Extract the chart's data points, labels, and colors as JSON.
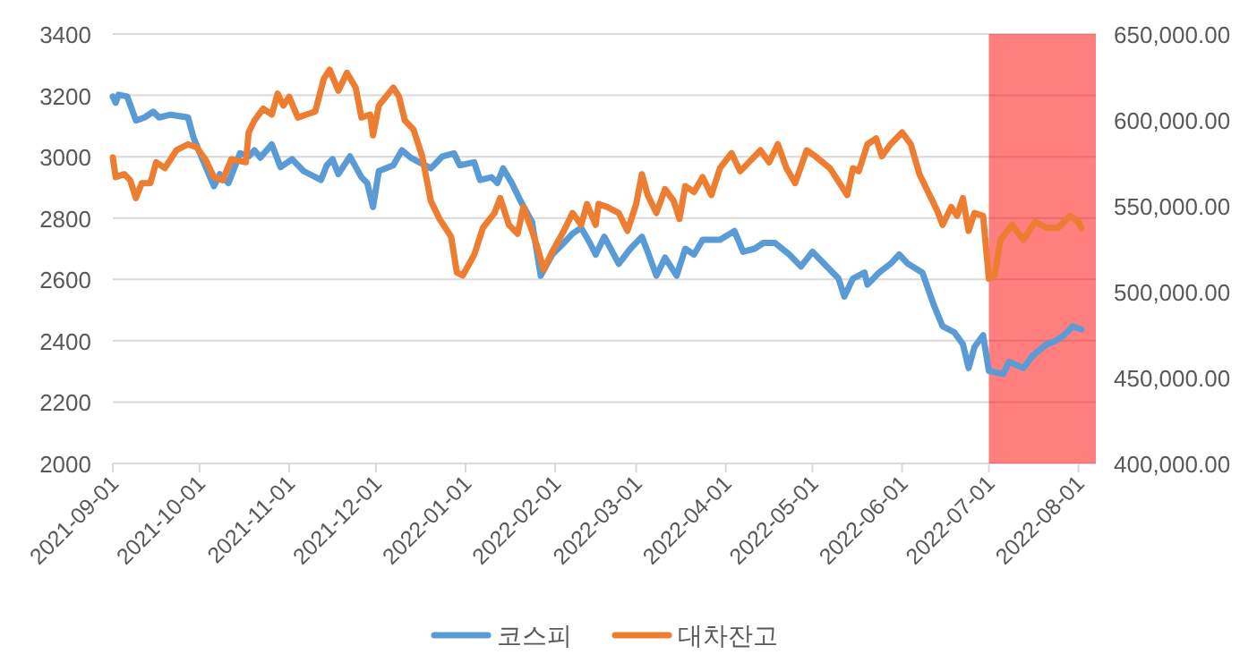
{
  "chart_data": {
    "type": "line",
    "legend": "bottom",
    "grid": "y",
    "xlim": [
      "2021-09-01",
      "2022-08-07"
    ],
    "xticks": [
      "2021-09-01",
      "2021-10-01",
      "2021-11-01",
      "2021-12-01",
      "2022-01-01",
      "2022-02-01",
      "2022-03-01",
      "2022-04-01",
      "2022-05-01",
      "2022-06-01",
      "2022-07-01",
      "2022-08-01"
    ],
    "ylim": [
      2000,
      3400
    ],
    "yticks": [
      2000,
      2200,
      2400,
      2600,
      2800,
      3000,
      3200,
      3400
    ],
    "y2lim": [
      400000,
      650000
    ],
    "y2ticks": [
      {
        "value": 400000,
        "label": "400,000.00"
      },
      {
        "value": 450000,
        "label": "450,000.00"
      },
      {
        "value": 500000,
        "label": "500,000.00"
      },
      {
        "value": 550000,
        "label": "550,000.00"
      },
      {
        "value": 600000,
        "label": "600,000.00"
      },
      {
        "value": 650000,
        "label": "650,000.00"
      }
    ],
    "bands": [
      {
        "axis": "x",
        "from": "2022-07-01",
        "to": "2022-08-07",
        "color": "#ff0000"
      }
    ],
    "series": [
      {
        "name": "코스피",
        "color": "#5b9bd5",
        "x": [
          "2021-09-01",
          "2021-09-02",
          "2021-09-03",
          "2021-09-06",
          "2021-09-09",
          "2021-09-12",
          "2021-09-15",
          "2021-09-17",
          "2021-09-21",
          "2021-09-27",
          "2021-09-29",
          "2021-10-02",
          "2021-10-06",
          "2021-10-08",
          "2021-10-11",
          "2021-10-15",
          "2021-10-18",
          "2021-10-20",
          "2021-10-22",
          "2021-10-26",
          "2021-10-29",
          "2021-11-02",
          "2021-11-06",
          "2021-11-12",
          "2021-11-14",
          "2021-11-16",
          "2021-11-18",
          "2021-11-22",
          "2021-11-26",
          "2021-11-28",
          "2021-11-30",
          "2021-12-02",
          "2021-12-07",
          "2021-12-10",
          "2021-12-13",
          "2021-12-16",
          "2021-12-20",
          "2021-12-24",
          "2021-12-28",
          "2021-12-30",
          "2022-01-04",
          "2022-01-06",
          "2022-01-10",
          "2022-01-12",
          "2022-01-14",
          "2022-01-17",
          "2022-01-20",
          "2022-01-24",
          "2022-01-27",
          "2022-01-31",
          "2022-02-04",
          "2022-02-07",
          "2022-02-10",
          "2022-02-13",
          "2022-02-15",
          "2022-02-18",
          "2022-02-23",
          "2022-02-27",
          "2022-03-03",
          "2022-03-05",
          "2022-03-08",
          "2022-03-11",
          "2022-03-15",
          "2022-03-18",
          "2022-03-21",
          "2022-03-24",
          "2022-03-30",
          "2022-04-04",
          "2022-04-07",
          "2022-04-11",
          "2022-04-14",
          "2022-04-18",
          "2022-04-23",
          "2022-04-27",
          "2022-05-01",
          "2022-05-05",
          "2022-05-10",
          "2022-05-12",
          "2022-05-15",
          "2022-05-19",
          "2022-05-20",
          "2022-05-24",
          "2022-05-28",
          "2022-05-31",
          "2022-06-03",
          "2022-06-08",
          "2022-06-12",
          "2022-06-15",
          "2022-06-19",
          "2022-06-22",
          "2022-06-24",
          "2022-06-26",
          "2022-06-29",
          "2022-07-01",
          "2022-07-06",
          "2022-07-08",
          "2022-07-13",
          "2022-07-16",
          "2022-07-21",
          "2022-07-24",
          "2022-07-27",
          "2022-07-30",
          "2022-08-02"
        ],
        "values": [
          3196,
          3176,
          3202,
          3196,
          3118,
          3128,
          3147,
          3128,
          3137,
          3128,
          3060,
          2992,
          2904,
          2943,
          2914,
          3011,
          3001,
          3021,
          2997,
          3040,
          2966,
          2992,
          2953,
          2924,
          2972,
          2992,
          2943,
          3001,
          2933,
          2914,
          2836,
          2953,
          2972,
          3021,
          2997,
          2982,
          2962,
          3001,
          3011,
          2972,
          2982,
          2924,
          2933,
          2914,
          2962,
          2914,
          2856,
          2787,
          2612,
          2681,
          2719,
          2749,
          2768,
          2719,
          2681,
          2739,
          2651,
          2700,
          2739,
          2690,
          2612,
          2671,
          2612,
          2700,
          2681,
          2729,
          2729,
          2758,
          2690,
          2700,
          2719,
          2719,
          2681,
          2642,
          2690,
          2651,
          2603,
          2544,
          2603,
          2622,
          2583,
          2622,
          2651,
          2681,
          2651,
          2622,
          2515,
          2447,
          2428,
          2389,
          2311,
          2379,
          2418,
          2301,
          2292,
          2331,
          2311,
          2350,
          2389,
          2399,
          2418,
          2447,
          2437
        ]
      },
      {
        "name": "대차잔고",
        "color": "#ed7d31",
        "axis": "y2",
        "x": [
          "2021-09-01",
          "2021-09-02",
          "2021-09-05",
          "2021-09-07",
          "2021-09-09",
          "2021-09-11",
          "2021-09-14",
          "2021-09-16",
          "2021-09-19",
          "2021-09-23",
          "2021-09-27",
          "2021-09-30",
          "2021-10-03",
          "2021-10-06",
          "2021-10-09",
          "2021-10-12",
          "2021-10-17",
          "2021-10-18",
          "2021-10-20",
          "2021-10-23",
          "2021-10-26",
          "2021-10-28",
          "2021-10-30",
          "2021-11-01",
          "2021-11-04",
          "2021-11-07",
          "2021-11-10",
          "2021-11-13",
          "2021-11-15",
          "2021-11-18",
          "2021-11-21",
          "2021-11-24",
          "2021-11-26",
          "2021-11-29",
          "2021-11-30",
          "2021-12-02",
          "2021-12-07",
          "2021-12-09",
          "2021-12-11",
          "2021-12-14",
          "2021-12-17",
          "2021-12-20",
          "2021-12-23",
          "2021-12-27",
          "2021-12-29",
          "2021-12-31",
          "2022-01-04",
          "2022-01-07",
          "2022-01-11",
          "2022-01-13",
          "2022-01-16",
          "2022-01-19",
          "2022-01-21",
          "2022-01-24",
          "2022-01-26",
          "2022-01-28",
          "2022-01-31",
          "2022-02-04",
          "2022-02-07",
          "2022-02-10",
          "2022-02-12",
          "2022-02-15",
          "2022-02-16",
          "2022-02-19",
          "2022-02-23",
          "2022-02-26",
          "2022-03-01",
          "2022-03-03",
          "2022-03-05",
          "2022-03-08",
          "2022-03-11",
          "2022-03-14",
          "2022-03-16",
          "2022-03-18",
          "2022-03-21",
          "2022-03-24",
          "2022-03-27",
          "2022-03-30",
          "2022-04-03",
          "2022-04-06",
          "2022-04-09",
          "2022-04-13",
          "2022-04-16",
          "2022-04-19",
          "2022-04-22",
          "2022-04-25",
          "2022-04-29",
          "2022-05-02",
          "2022-05-07",
          "2022-05-11",
          "2022-05-13",
          "2022-05-15",
          "2022-05-17",
          "2022-05-20",
          "2022-05-23",
          "2022-05-25",
          "2022-05-28",
          "2022-06-01",
          "2022-06-04",
          "2022-06-07",
          "2022-06-13",
          "2022-06-15",
          "2022-06-18",
          "2022-06-20",
          "2022-06-22",
          "2022-06-24",
          "2022-06-26",
          "2022-06-29",
          "2022-07-01",
          "2022-07-03",
          "2022-07-05",
          "2022-07-09",
          "2022-07-13",
          "2022-07-17",
          "2022-07-21",
          "2022-07-25",
          "2022-07-29",
          "2022-08-01",
          "2022-08-02"
        ],
        "values": [
          578100,
          566700,
          568400,
          564900,
          554500,
          563200,
          563200,
          575300,
          571900,
          582300,
          585800,
          584000,
          577100,
          566700,
          564900,
          577100,
          575300,
          592700,
          599700,
          606600,
          603100,
          615300,
          608300,
          613500,
          601400,
          603100,
          604900,
          624000,
          629200,
          617000,
          627400,
          618800,
          601400,
          603100,
          591000,
          608300,
          618800,
          613500,
          599700,
          594400,
          578800,
          552800,
          542400,
          532000,
          511100,
          509400,
          521500,
          537100,
          545800,
          554500,
          538900,
          533700,
          549300,
          535400,
          525000,
          512800,
          523300,
          535400,
          545800,
          538900,
          551000,
          538900,
          551000,
          549300,
          545800,
          535400,
          551000,
          568400,
          556200,
          545800,
          559700,
          552800,
          542400,
          561500,
          558000,
          566700,
          556200,
          571900,
          580600,
          570100,
          575300,
          582300,
          575300,
          585800,
          571900,
          563200,
          582300,
          578800,
          571900,
          561500,
          556200,
          571900,
          570100,
          585800,
          589200,
          578800,
          585800,
          592700,
          585800,
          568400,
          547600,
          538900,
          549300,
          544100,
          554500,
          535400,
          545800,
          544100,
          507600,
          509400,
          530200,
          538900,
          530200,
          540600,
          537100,
          537100,
          544100,
          540600,
          537100
        ]
      }
    ]
  }
}
